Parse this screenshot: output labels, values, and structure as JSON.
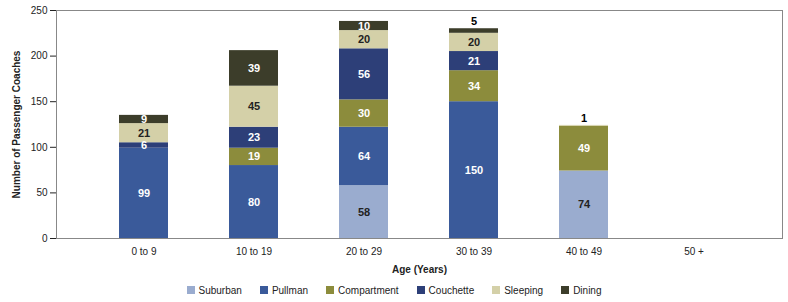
{
  "chart_data": {
    "type": "bar",
    "x_label": "Age (Years)",
    "y_label": "Number of Passenger Coaches",
    "categories": [
      "0 to 9",
      "10 to 19",
      "20 to 29",
      "30 to 39",
      "40 to 49",
      "50 +"
    ],
    "series": [
      {
        "name": "Suburban",
        "color": "#9aaccf",
        "values": [
          0,
          0,
          58,
          0,
          74,
          0
        ]
      },
      {
        "name": "Pullman",
        "color": "#3a5a9a",
        "values": [
          99,
          80,
          64,
          150,
          0,
          0
        ]
      },
      {
        "name": "Compartment",
        "color": "#8c8c3c",
        "values": [
          0,
          19,
          30,
          34,
          49,
          0
        ]
      },
      {
        "name": "Couchette",
        "color": "#2d3f78",
        "values": [
          6,
          23,
          56,
          21,
          0,
          0
        ]
      },
      {
        "name": "Sleeping",
        "color": "#d4d0a8",
        "values": [
          21,
          45,
          20,
          20,
          1,
          0
        ]
      },
      {
        "name": "Dining",
        "color": "#3c3d2a",
        "values": [
          9,
          39,
          10,
          5,
          0,
          0
        ]
      }
    ],
    "ylim": [
      0,
      250
    ],
    "yticks": [
      0,
      50,
      100,
      150,
      200,
      250
    ],
    "stacked": true,
    "data_labels": true,
    "grid": false,
    "legend": "bottom"
  }
}
